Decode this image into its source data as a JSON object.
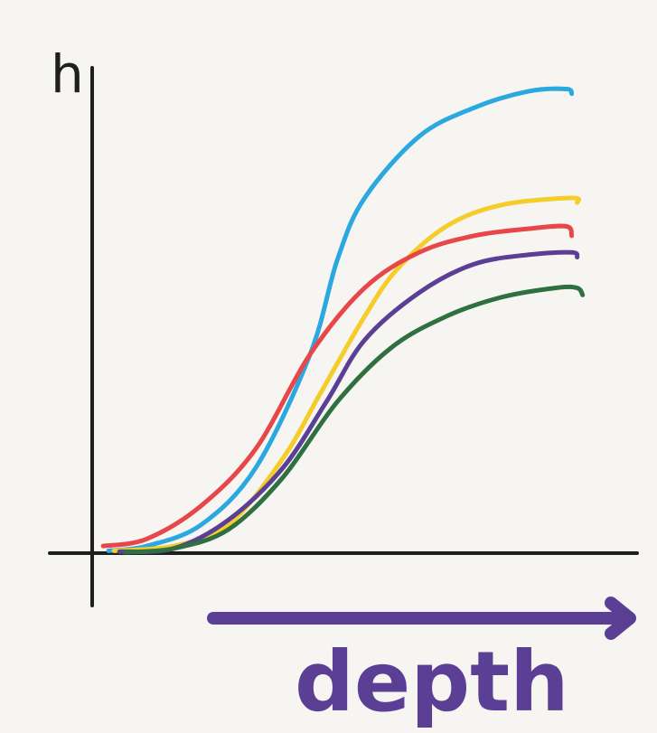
{
  "chart_data": {
    "type": "line",
    "title": "",
    "ylabel": "h",
    "xlabel": "depth",
    "xlim": [
      0,
      100
    ],
    "ylim": [
      0,
      100
    ],
    "grid": false,
    "legend": "none",
    "series": [
      {
        "color": "#2ba8e0",
        "points": [
          [
            3,
            0.5
          ],
          [
            10,
            1.5
          ],
          [
            20,
            6
          ],
          [
            30,
            18
          ],
          [
            40,
            42
          ],
          [
            45,
            62
          ],
          [
            50,
            75
          ],
          [
            60,
            88
          ],
          [
            70,
            94
          ],
          [
            80,
            97.5
          ],
          [
            87,
            98
          ],
          [
            88,
            97
          ]
        ]
      },
      {
        "color": "#f5cd2b",
        "points": [
          [
            4,
            0.5
          ],
          [
            15,
            1.5
          ],
          [
            25,
            6
          ],
          [
            35,
            20
          ],
          [
            42,
            34
          ],
          [
            50,
            50
          ],
          [
            56,
            60
          ],
          [
            65,
            69
          ],
          [
            75,
            73.5
          ],
          [
            88,
            75
          ],
          [
            89,
            74
          ]
        ]
      },
      {
        "color": "#e8474a",
        "points": [
          [
            2,
            1.5
          ],
          [
            10,
            3
          ],
          [
            20,
            10
          ],
          [
            30,
            22
          ],
          [
            40,
            42
          ],
          [
            50,
            56
          ],
          [
            60,
            63.5
          ],
          [
            70,
            67
          ],
          [
            80,
            68.5
          ],
          [
            87,
            69
          ],
          [
            88,
            67
          ]
        ]
      },
      {
        "color": "#5a3f95",
        "points": [
          [
            5,
            0.3
          ],
          [
            15,
            1
          ],
          [
            25,
            7
          ],
          [
            35,
            18
          ],
          [
            43,
            32
          ],
          [
            50,
            45
          ],
          [
            60,
            55
          ],
          [
            70,
            61
          ],
          [
            80,
            63
          ],
          [
            88,
            63.5
          ],
          [
            89,
            62.5
          ]
        ]
      },
      {
        "color": "#2e7040",
        "points": [
          [
            6,
            0.2
          ],
          [
            15,
            1
          ],
          [
            25,
            5
          ],
          [
            35,
            16
          ],
          [
            45,
            32
          ],
          [
            55,
            43.5
          ],
          [
            65,
            50
          ],
          [
            75,
            54
          ],
          [
            85,
            56
          ],
          [
            89,
            56
          ],
          [
            90,
            54.5
          ]
        ]
      }
    ]
  },
  "colors": {
    "background": "#f6f5f2",
    "axis": "#1f1f1f",
    "accent": "#5a3f95"
  }
}
